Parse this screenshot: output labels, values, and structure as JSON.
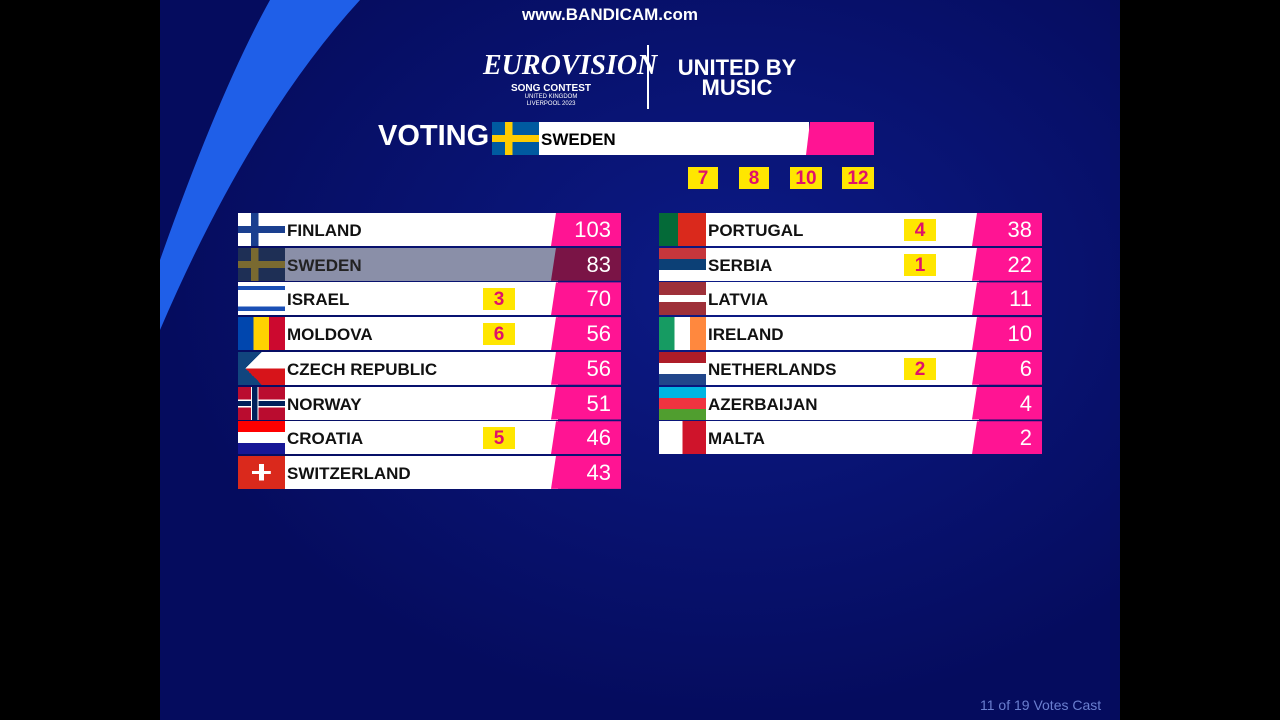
{
  "watermark": "www.BANDICAM.com",
  "logo": {
    "name": "EUROVISION",
    "line1": "SONG CONTEST",
    "line2": "UNITED KINGDOM",
    "line3": "LIVERPOOL 2023"
  },
  "slogan": {
    "line1": "UNITED BY",
    "line2": "MUSIC"
  },
  "voting": {
    "label": "VOTING",
    "country": "SWEDEN",
    "remaining_points": [
      7,
      8,
      10,
      12
    ]
  },
  "scoreboard": {
    "left": [
      {
        "country": "FINLAND",
        "points": null,
        "total": 103
      },
      {
        "country": "SWEDEN",
        "points": null,
        "total": 83
      },
      {
        "country": "ISRAEL",
        "points": 3,
        "total": 70
      },
      {
        "country": "MOLDOVA",
        "points": 6,
        "total": 56
      },
      {
        "country": "CZECH REPUBLIC",
        "points": null,
        "total": 56
      },
      {
        "country": "NORWAY",
        "points": null,
        "total": 51
      },
      {
        "country": "CROATIA",
        "points": 5,
        "total": 46
      },
      {
        "country": "SWITZERLAND",
        "points": null,
        "total": 43
      }
    ],
    "right": [
      {
        "country": "PORTUGAL",
        "points": 4,
        "total": 38
      },
      {
        "country": "SERBIA",
        "points": 1,
        "total": 22
      },
      {
        "country": "LATVIA",
        "points": null,
        "total": 11
      },
      {
        "country": "IRELAND",
        "points": null,
        "total": 10
      },
      {
        "country": "NETHERLANDS",
        "points": 2,
        "total": 6
      },
      {
        "country": "AZERBAIJAN",
        "points": null,
        "total": 4
      },
      {
        "country": "MALTA",
        "points": null,
        "total": 2
      }
    ]
  },
  "footer": "11 of 19 Votes Cast"
}
